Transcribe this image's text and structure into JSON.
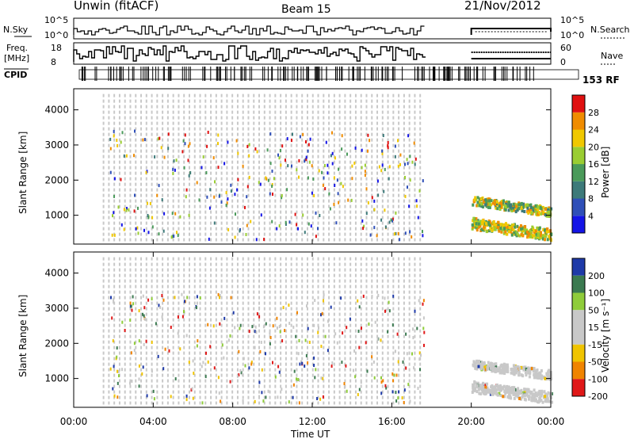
{
  "header": {
    "station": "Unwin (fitACF)",
    "beam": "Beam 15",
    "date": "21/Nov/2012"
  },
  "status_panels": {
    "sky_label": "N.Sky",
    "sky_ticks": [
      "10^5",
      "10^0"
    ],
    "search_label": "N.Search",
    "search_ticks": [
      "10^5",
      "10^0"
    ],
    "freq_label_1": "Freq.",
    "freq_label_2": "[MHz]",
    "freq_ticks": [
      "18",
      "8"
    ],
    "nave_label": "Nave",
    "nave_ticks": [
      "60",
      "0"
    ],
    "cpid_label": "CPID",
    "cpid_value": "153 RF"
  },
  "chart_data": [
    {
      "type": "heatmap",
      "name": "power",
      "ylabel": "Slant Range [km]",
      "y_ticks": [
        1000,
        2000,
        3000,
        4000
      ],
      "ylim": [
        180,
        4600
      ],
      "xlim": [
        0,
        24
      ],
      "colorbar": {
        "label": "Power [dB]",
        "ticks": [
          "4",
          "8",
          "12",
          "16",
          "20",
          "24",
          "28"
        ],
        "colors": [
          "#1414e6",
          "#2f4fb8",
          "#3d7a7a",
          "#4a9a5a",
          "#9acd32",
          "#f0c800",
          "#f08c00",
          "#e01010"
        ]
      }
    },
    {
      "type": "heatmap",
      "name": "velocity",
      "ylabel": "Slant Range [km]",
      "y_ticks": [
        1000,
        2000,
        3000,
        4000
      ],
      "ylim": [
        180,
        4600
      ],
      "xlim": [
        0,
        24
      ],
      "colorbar": {
        "label": "Velocity [m s⁻¹]",
        "ticks": [
          "200",
          "100",
          "50",
          "15",
          "-15",
          "-50",
          "-100",
          "-200"
        ],
        "colors": [
          "#1e3aa8",
          "#3b7a50",
          "#8fcc3a",
          "#c8c8c8",
          "#c8c8c8",
          "#f0c400",
          "#f08400",
          "#e01818"
        ]
      }
    }
  ],
  "time_axis": {
    "ticks": [
      "00:00",
      "04:00",
      "08:00",
      "12:00",
      "16:00",
      "20:00",
      "00:00"
    ],
    "label": "Time UT"
  },
  "colors": {
    "axis": "#000000",
    "grey": "#c8c8c8"
  }
}
